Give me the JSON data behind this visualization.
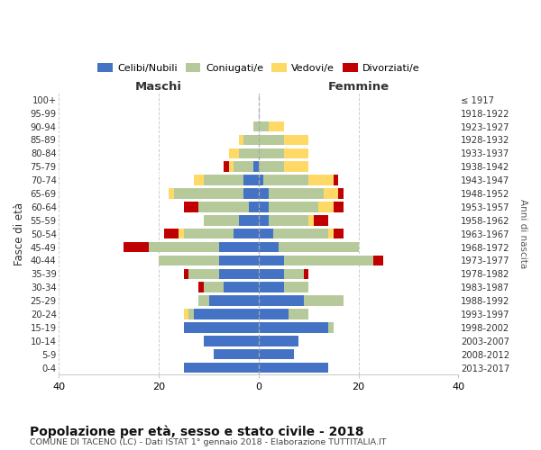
{
  "age_groups": [
    "100+",
    "95-99",
    "90-94",
    "85-89",
    "80-84",
    "75-79",
    "70-74",
    "65-69",
    "60-64",
    "55-59",
    "50-54",
    "45-49",
    "40-44",
    "35-39",
    "30-34",
    "25-29",
    "20-24",
    "15-19",
    "10-14",
    "5-9",
    "0-4"
  ],
  "birth_years": [
    "≤ 1917",
    "1918-1922",
    "1923-1927",
    "1928-1932",
    "1933-1937",
    "1938-1942",
    "1943-1947",
    "1948-1952",
    "1953-1957",
    "1958-1962",
    "1963-1967",
    "1968-1972",
    "1973-1977",
    "1978-1982",
    "1983-1987",
    "1988-1992",
    "1993-1997",
    "1998-2002",
    "2003-2007",
    "2008-2012",
    "2013-2017"
  ],
  "colors": {
    "celibi": "#4472C4",
    "coniugati": "#B5C99A",
    "vedovi": "#FFD966",
    "divorziati": "#C00000"
  },
  "males": {
    "celibi": [
      0,
      0,
      0,
      0,
      0,
      1,
      3,
      3,
      2,
      4,
      5,
      8,
      8,
      8,
      7,
      10,
      13,
      15,
      11,
      9,
      15
    ],
    "coniugati": [
      0,
      0,
      1,
      3,
      4,
      4,
      8,
      14,
      10,
      7,
      10,
      14,
      12,
      6,
      4,
      2,
      1,
      0,
      0,
      0,
      0
    ],
    "vedovi": [
      0,
      0,
      0,
      1,
      2,
      1,
      2,
      1,
      0,
      0,
      1,
      0,
      0,
      0,
      0,
      0,
      1,
      0,
      0,
      0,
      0
    ],
    "divorziati": [
      0,
      0,
      0,
      0,
      0,
      1,
      0,
      0,
      3,
      0,
      3,
      5,
      0,
      1,
      1,
      0,
      0,
      0,
      0,
      0,
      0
    ]
  },
  "females": {
    "celibi": [
      0,
      0,
      0,
      0,
      0,
      0,
      1,
      2,
      2,
      2,
      3,
      4,
      5,
      5,
      5,
      9,
      6,
      14,
      8,
      7,
      14
    ],
    "coniugati": [
      0,
      0,
      2,
      5,
      5,
      5,
      9,
      11,
      10,
      8,
      11,
      16,
      18,
      4,
      5,
      8,
      4,
      1,
      0,
      0,
      0
    ],
    "vedovi": [
      0,
      0,
      3,
      5,
      5,
      5,
      5,
      3,
      3,
      1,
      1,
      0,
      0,
      0,
      0,
      0,
      0,
      0,
      0,
      0,
      0
    ],
    "divorziati": [
      0,
      0,
      0,
      0,
      0,
      0,
      1,
      1,
      2,
      3,
      2,
      0,
      2,
      1,
      0,
      0,
      0,
      0,
      0,
      0,
      0
    ]
  },
  "xlim": 40,
  "title": "Popolazione per età, sesso e stato civile - 2018",
  "subtitle": "COMUNE DI TACENO (LC) - Dati ISTAT 1° gennaio 2018 - Elaborazione TUTTITALIA.IT",
  "xlabel_left": "Maschi",
  "xlabel_right": "Femmine",
  "ylabel": "Fasce di età",
  "ylabel_right": "Anni di nascita",
  "legend_labels": [
    "Celibi/Nubili",
    "Coniugati/e",
    "Vedovi/e",
    "Divorziati/e"
  ],
  "background_color": "#ffffff",
  "xticks": [
    40,
    20,
    0,
    20,
    40
  ]
}
